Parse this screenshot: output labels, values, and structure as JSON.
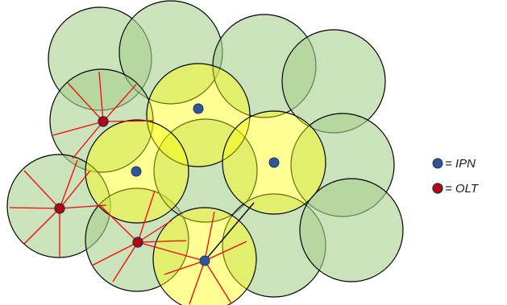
{
  "legend": {
    "ipn": {
      "label": "= IPN",
      "color": "#2f5597"
    },
    "olt": {
      "label": "= OLT",
      "color": "#c00000"
    }
  },
  "colors": {
    "green_cell_fill": "#a9d18e",
    "yellow_cell_fill": "#ffff00",
    "cell_stroke": "#000000",
    "fiber_line": "#ff0000",
    "link_line": "#000000"
  }
}
